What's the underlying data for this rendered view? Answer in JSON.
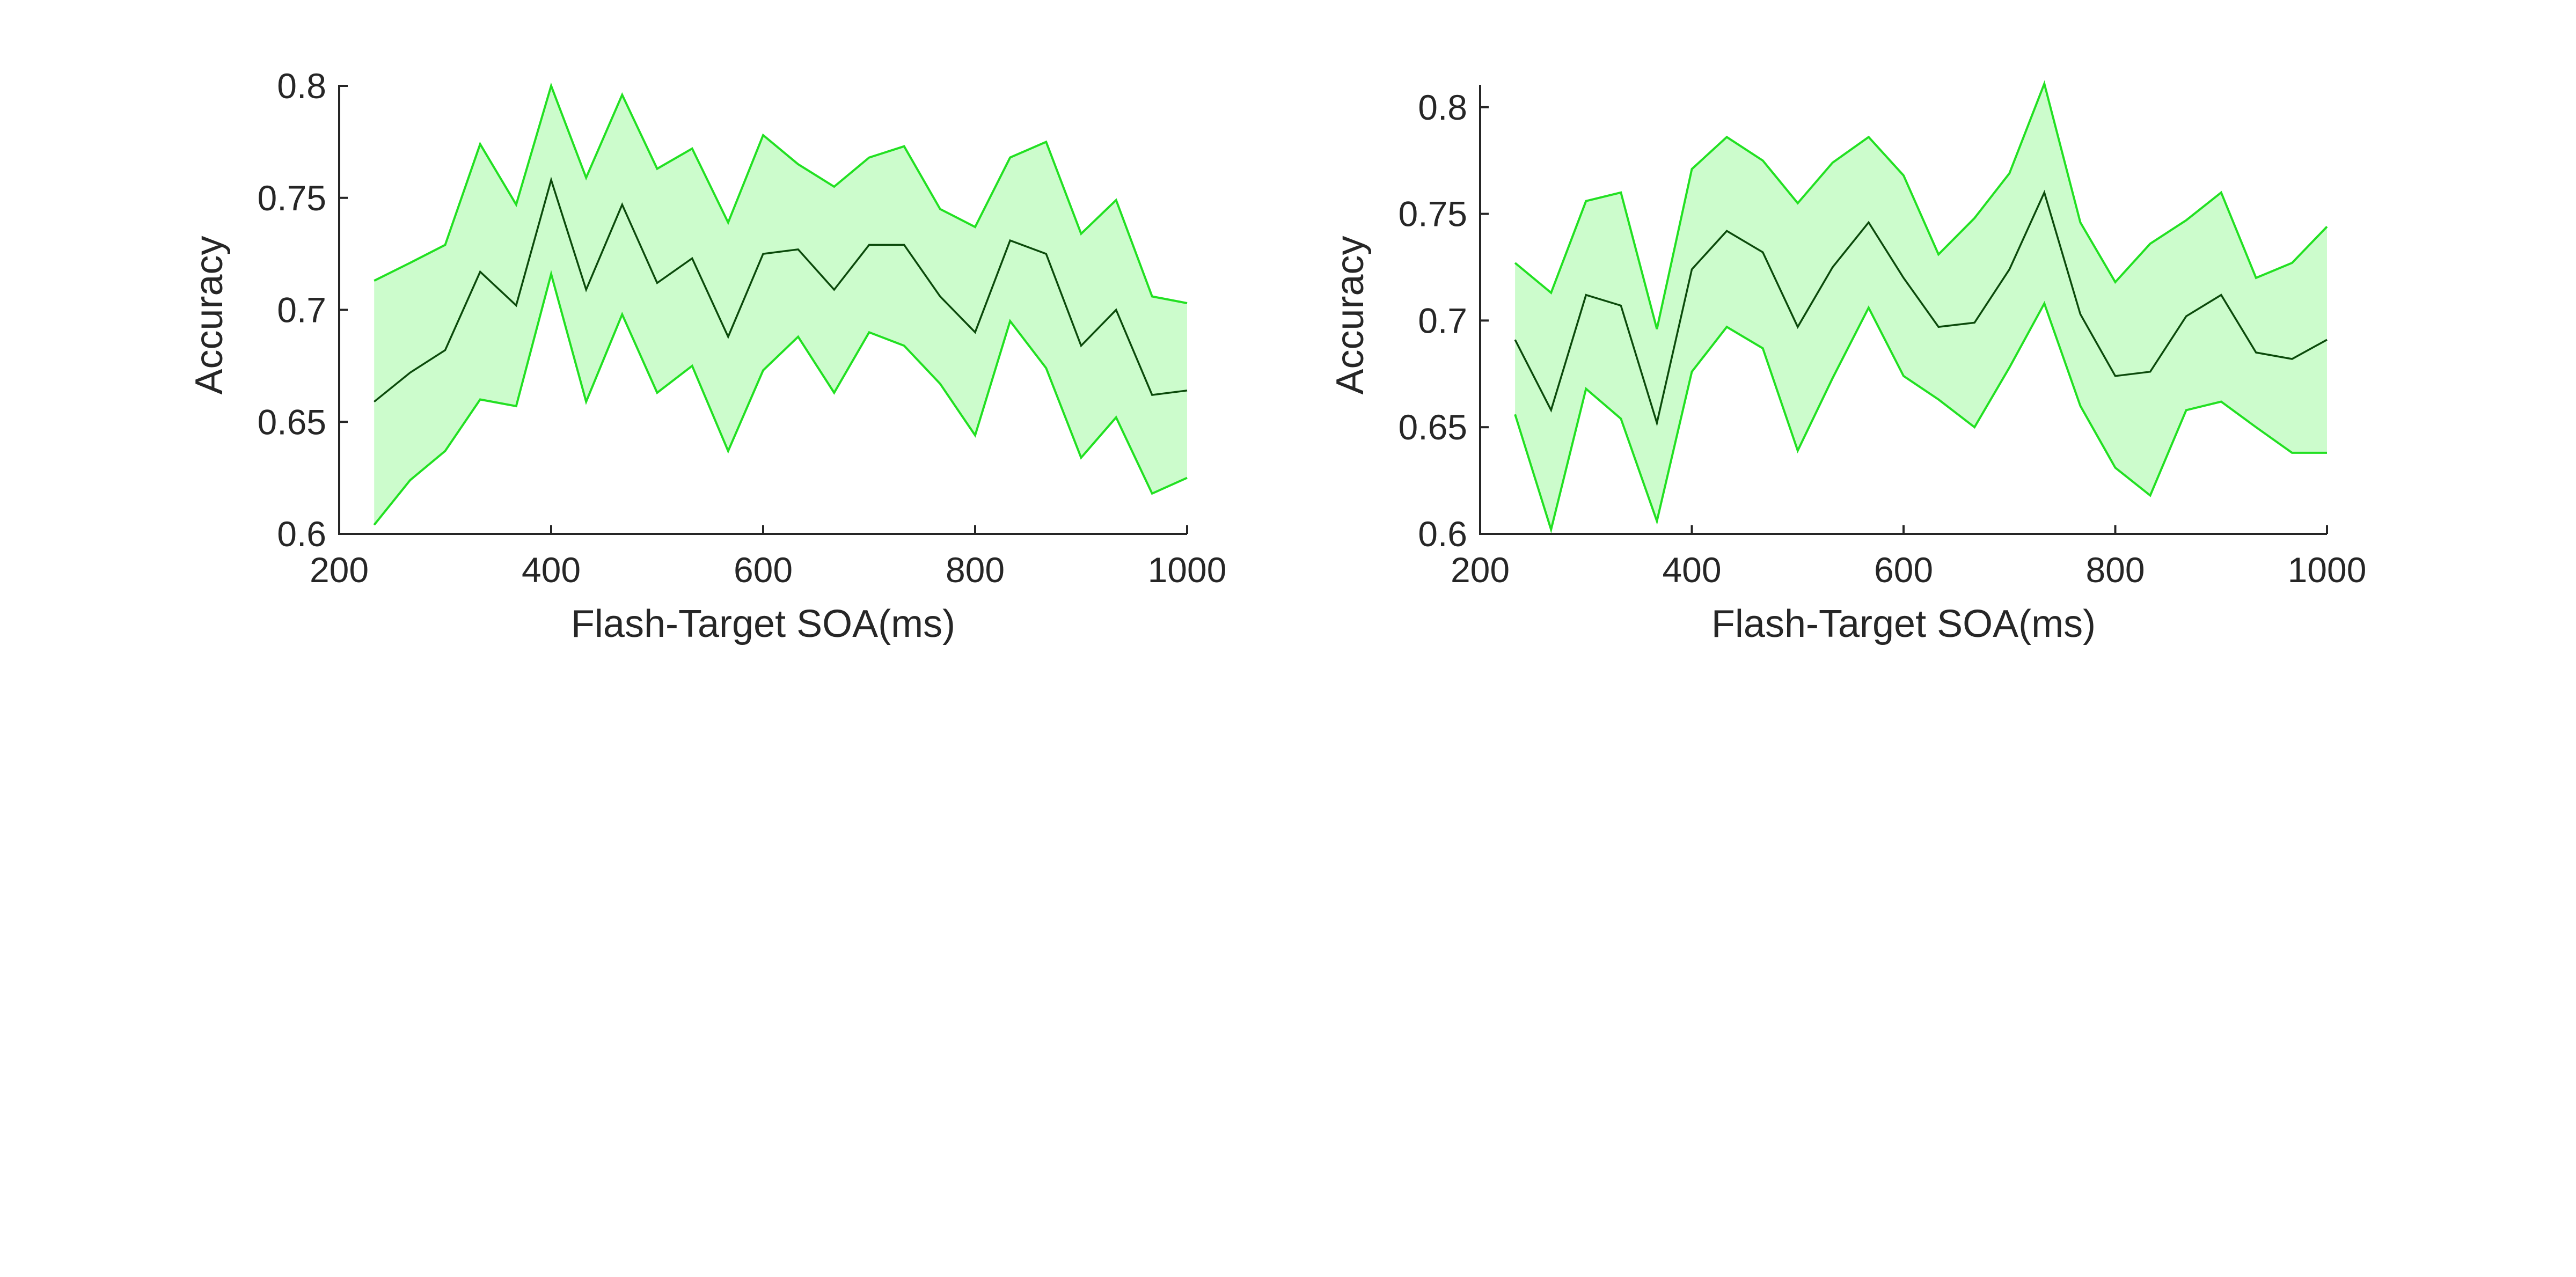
{
  "colors": {
    "band_fill": "#ccfccc",
    "bound_line": "#22e022",
    "mean_line": "#0b4a0b",
    "axis": "#262626"
  },
  "chart_data": [
    {
      "type": "line",
      "xlabel": "Flash-Target SOA(ms)",
      "ylabel": "Accuracy",
      "xlim": [
        200,
        1000
      ],
      "ylim": [
        0.6,
        0.8
      ],
      "xticks": [
        200,
        400,
        600,
        800,
        1000
      ],
      "yticks": [
        0.6,
        0.65,
        0.7,
        0.75,
        0.8
      ],
      "ytick_labels": [
        "0.6",
        "0.65",
        "0.7",
        "0.75",
        "0.8"
      ],
      "shaded_band": true,
      "grid": false,
      "x": [
        233,
        267,
        300,
        333,
        367,
        400,
        433,
        467,
        500,
        533,
        567,
        600,
        633,
        667,
        700,
        733,
        767,
        800,
        833,
        867,
        900,
        933,
        967,
        1000
      ],
      "series": [
        {
          "role": "upper",
          "values": [
            0.713,
            0.721,
            0.729,
            0.774,
            0.747,
            0.8,
            0.759,
            0.796,
            0.763,
            0.772,
            0.739,
            0.778,
            0.765,
            0.755,
            0.768,
            0.773,
            0.745,
            0.737,
            0.768,
            0.775,
            0.734,
            0.749,
            0.706,
            0.703
          ]
        },
        {
          "role": "mean",
          "values": [
            0.659,
            0.672,
            0.682,
            0.717,
            0.702,
            0.758,
            0.709,
            0.747,
            0.712,
            0.723,
            0.688,
            0.725,
            0.727,
            0.709,
            0.729,
            0.729,
            0.706,
            0.69,
            0.731,
            0.725,
            0.684,
            0.7,
            0.662,
            0.664
          ]
        },
        {
          "role": "lower",
          "values": [
            0.604,
            0.624,
            0.637,
            0.66,
            0.657,
            0.716,
            0.659,
            0.698,
            0.663,
            0.675,
            0.637,
            0.673,
            0.688,
            0.663,
            0.69,
            0.684,
            0.667,
            0.644,
            0.695,
            0.674,
            0.634,
            0.652,
            0.618,
            0.625
          ]
        }
      ]
    },
    {
      "type": "line",
      "xlabel": "Flash-Target SOA(ms)",
      "ylabel": "Accuracy",
      "xlim": [
        200,
        1000
      ],
      "ylim": [
        0.6,
        0.81
      ],
      "xticks": [
        200,
        400,
        600,
        800,
        1000
      ],
      "yticks": [
        0.6,
        0.65,
        0.7,
        0.75,
        0.8
      ],
      "ytick_labels": [
        "0.6",
        "0.65",
        "0.7",
        "0.75",
        "0.8"
      ],
      "shaded_band": true,
      "grid": false,
      "x": [
        233,
        267,
        300,
        333,
        367,
        400,
        433,
        467,
        500,
        533,
        567,
        600,
        633,
        667,
        700,
        733,
        767,
        800,
        833,
        867,
        900,
        933,
        967,
        1000
      ],
      "series": [
        {
          "role": "upper",
          "values": [
            0.727,
            0.713,
            0.756,
            0.76,
            0.696,
            0.771,
            0.786,
            0.775,
            0.755,
            0.774,
            0.786,
            0.768,
            0.731,
            0.748,
            0.769,
            0.811,
            0.746,
            0.718,
            0.736,
            0.747,
            0.76,
            0.72,
            0.727,
            0.744
          ]
        },
        {
          "role": "mean",
          "values": [
            0.691,
            0.658,
            0.712,
            0.707,
            0.652,
            0.724,
            0.742,
            0.732,
            0.697,
            0.725,
            0.746,
            0.72,
            0.697,
            0.699,
            0.724,
            0.76,
            0.703,
            0.674,
            0.676,
            0.702,
            0.712,
            0.685,
            0.682,
            0.691
          ]
        },
        {
          "role": "lower",
          "values": [
            0.656,
            0.602,
            0.668,
            0.654,
            0.606,
            0.676,
            0.697,
            0.687,
            0.639,
            0.673,
            0.706,
            0.674,
            0.663,
            0.65,
            0.678,
            0.708,
            0.66,
            0.631,
            0.618,
            0.658,
            0.662,
            0.65,
            0.638,
            0.638
          ]
        }
      ]
    }
  ]
}
